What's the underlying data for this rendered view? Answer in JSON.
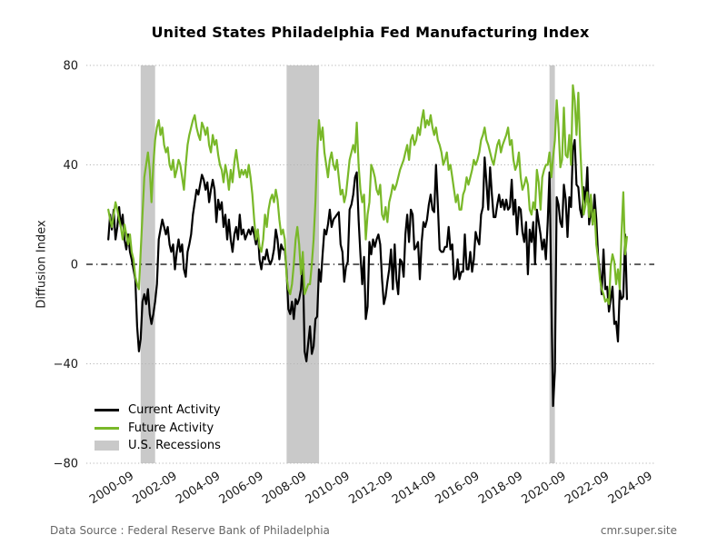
{
  "page": {
    "footer": {
      "source": "Data Source : Federal Reserve Bank of Philadelphia",
      "site": "cmr.super.site"
    }
  },
  "chart_data": {
    "type": "line",
    "title": "United States Philadelphia Fed Manufacturing Index",
    "xlabel": "",
    "ylabel": "Diffusion Index",
    "ylim": [
      -80,
      80
    ],
    "yticks": [
      80,
      40,
      0,
      -40,
      -80
    ],
    "ytick_labels": [
      "80",
      "40",
      "0",
      "−40",
      "−80"
    ],
    "xtick_labels": [
      "2000-09",
      "2002-09",
      "2004-09",
      "2006-09",
      "2008-09",
      "2010-09",
      "2012-09",
      "2014-09",
      "2016-09",
      "2018-09",
      "2020-09",
      "2022-09",
      "2024-09"
    ],
    "frequency": "monthly",
    "x_start": "1999-09",
    "x_end": "2023-09",
    "grid": "horizontal-dotted",
    "zero_line": "black-dash-dot",
    "legend_position": "lower-left",
    "colors": {
      "current": "#000000",
      "future": "#79b829",
      "recession": "#c9c9c9",
      "grid": "#b5b5b5"
    },
    "legend": [
      {
        "label": "Current Activity",
        "type": "line",
        "color": "#000000"
      },
      {
        "label": "Future Activity",
        "type": "line",
        "color": "#79b829"
      },
      {
        "label": "U.S. Recessions",
        "type": "patch",
        "color": "#c9c9c9"
      }
    ],
    "recessions": [
      {
        "start": "2001-03",
        "end": "2001-11"
      },
      {
        "start": "2007-12",
        "end": "2009-06"
      },
      {
        "start": "2020-02",
        "end": "2020-05"
      }
    ],
    "series": [
      {
        "name": "Current Activity",
        "color": "#000000",
        "values": [
          10,
          20,
          14,
          22,
          10,
          15,
          23,
          15,
          20,
          10,
          6,
          12,
          5,
          2,
          -2,
          -6,
          -25,
          -35,
          -30,
          -15,
          -12,
          -16,
          -10,
          -20,
          -24,
          -20,
          -15,
          -8,
          10,
          14,
          18,
          15,
          12,
          15,
          8,
          5,
          8,
          -2,
          5,
          10,
          5,
          8,
          -2,
          -5,
          5,
          8,
          12,
          20,
          25,
          30,
          28,
          32,
          36,
          34,
          30,
          33,
          25,
          30,
          34,
          30,
          17,
          26,
          22,
          25,
          15,
          20,
          10,
          18,
          10,
          5,
          12,
          15,
          10,
          20,
          12,
          14,
          10,
          12,
          14,
          12,
          15,
          12,
          8,
          14,
          2,
          -2,
          3,
          2,
          6,
          2,
          0,
          2,
          6,
          14,
          10,
          2,
          8,
          6,
          6,
          -3,
          -18,
          -20,
          -15,
          -22,
          -14,
          -16,
          -14,
          -10,
          2,
          -35,
          -39,
          -32,
          -25,
          -36,
          -33,
          -22,
          -21,
          -2,
          -7,
          4,
          14,
          12,
          16,
          22,
          15,
          18,
          19,
          20,
          21,
          8,
          5,
          -7,
          -1,
          1,
          22,
          24,
          28,
          35,
          37,
          18,
          4,
          -8,
          3,
          -22,
          -17,
          9,
          4,
          10,
          7,
          10,
          12,
          8,
          -6,
          -16,
          -13,
          -7,
          -2,
          6,
          -10,
          8,
          -6,
          -12,
          2,
          1,
          -5,
          12,
          20,
          9,
          22,
          20,
          6,
          7,
          9,
          -6,
          9,
          17,
          15,
          18,
          24,
          28,
          22,
          21,
          40,
          24,
          6,
          5,
          5,
          7,
          7,
          15,
          6,
          8,
          -6,
          -5,
          2,
          -6,
          -3,
          -3,
          12,
          -2,
          -2,
          5,
          -3,
          2,
          13,
          10,
          8,
          20,
          23,
          43,
          33,
          22,
          39,
          28,
          19,
          19,
          24,
          28,
          23,
          26,
          22,
          26,
          22,
          23,
          34,
          20,
          26,
          12,
          23,
          22,
          13,
          9,
          17,
          -4,
          14,
          9,
          17,
          0,
          22,
          17,
          12,
          6,
          10,
          2,
          17,
          37,
          -13,
          -57,
          -43,
          27,
          24,
          17,
          15,
          32,
          26,
          11,
          27,
          23,
          46,
          50,
          32,
          31,
          22,
          19,
          31,
          24,
          39,
          16,
          23,
          16,
          28,
          18,
          3,
          -3,
          -12,
          6,
          -10,
          -9,
          -19,
          -14,
          -9,
          -24,
          -23,
          -31,
          -10,
          -14,
          -13,
          12,
          -14
        ]
      },
      {
        "name": "Future Activity",
        "color": "#79b829",
        "values": [
          22,
          18,
          15,
          20,
          25,
          22,
          18,
          15,
          10,
          16,
          12,
          8,
          12,
          5,
          2,
          -5,
          -8,
          -10,
          5,
          20,
          35,
          40,
          45,
          38,
          25,
          40,
          50,
          55,
          58,
          52,
          55,
          48,
          45,
          47,
          40,
          38,
          42,
          35,
          38,
          42,
          40,
          35,
          30,
          40,
          48,
          52,
          55,
          58,
          60,
          55,
          52,
          50,
          57,
          55,
          52,
          55,
          48,
          45,
          52,
          48,
          50,
          44,
          40,
          38,
          33,
          40,
          36,
          30,
          38,
          33,
          41,
          46,
          40,
          35,
          38,
          36,
          38,
          35,
          40,
          35,
          28,
          18,
          10,
          14,
          7,
          5,
          10,
          20,
          15,
          22,
          26,
          28,
          25,
          30,
          26,
          18,
          12,
          14,
          10,
          -5,
          -10,
          -12,
          -8,
          0,
          10,
          15,
          8,
          -4,
          5,
          -12,
          -10,
          -8,
          -8,
          0,
          10,
          25,
          45,
          58,
          50,
          55,
          45,
          40,
          35,
          42,
          45,
          40,
          38,
          42,
          35,
          28,
          30,
          25,
          28,
          35,
          42,
          45,
          48,
          45,
          57,
          40,
          30,
          25,
          28,
          10,
          20,
          25,
          40,
          38,
          35,
          30,
          28,
          32,
          20,
          18,
          23,
          17,
          25,
          28,
          32,
          30,
          32,
          35,
          38,
          40,
          42,
          45,
          48,
          42,
          50,
          52,
          48,
          50,
          55,
          52,
          58,
          62,
          55,
          58,
          56,
          60,
          55,
          52,
          55,
          50,
          48,
          45,
          40,
          42,
          45,
          38,
          40,
          35,
          30,
          25,
          28,
          22,
          22,
          28,
          30,
          35,
          32,
          35,
          38,
          42,
          40,
          42,
          45,
          50,
          52,
          55,
          50,
          48,
          45,
          42,
          40,
          44,
          48,
          50,
          45,
          48,
          50,
          52,
          55,
          48,
          50,
          42,
          38,
          40,
          45,
          35,
          30,
          32,
          35,
          32,
          22,
          20,
          25,
          22,
          38,
          33,
          22,
          35,
          38,
          40,
          40,
          45,
          35,
          43,
          50,
          66,
          55,
          39,
          42,
          63,
          44,
          43,
          52,
          40,
          72,
          66,
          52,
          69,
          48,
          33,
          20,
          24,
          29,
          19,
          28,
          16,
          22,
          8,
          2,
          -6,
          -10,
          -12,
          -15,
          -14,
          -16,
          -1,
          4,
          1,
          -8,
          -2,
          -10,
          12,
          29,
          4,
          11
        ]
      }
    ]
  }
}
